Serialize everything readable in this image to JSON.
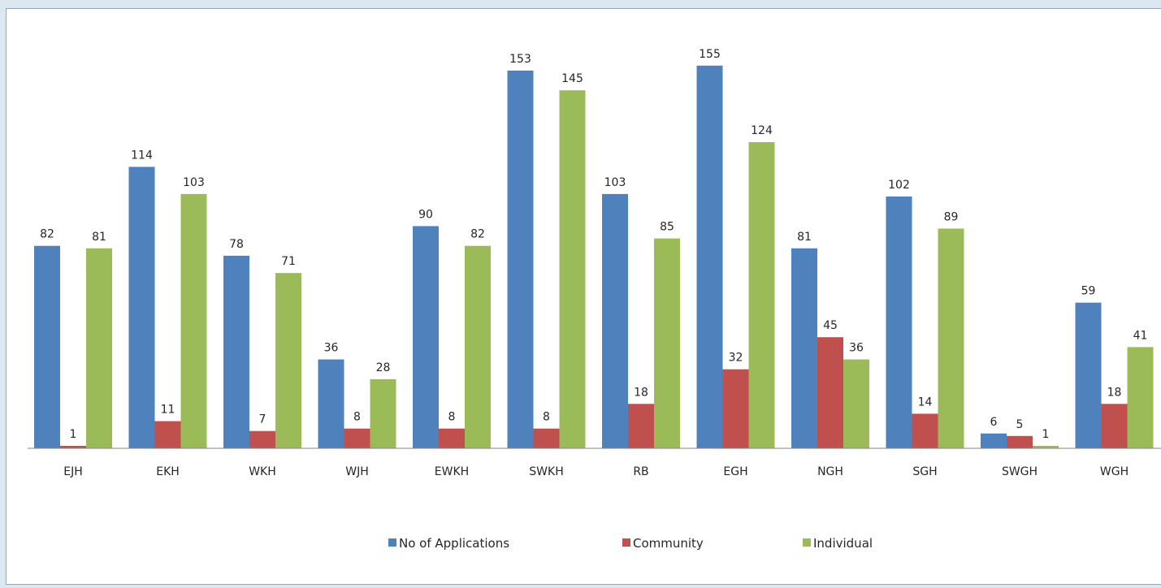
{
  "chart_data": {
    "type": "bar",
    "categories": [
      "EJH",
      "EKH",
      "WKH",
      "WJH",
      "EWKH",
      "SWKH",
      "RB",
      "EGH",
      "NGH",
      "SGH",
      "SWGH",
      "WGH"
    ],
    "series": [
      {
        "name": "No of Applications",
        "color": "#4f81bd",
        "values": [
          82,
          114,
          78,
          36,
          90,
          153,
          103,
          155,
          81,
          102,
          6,
          59
        ]
      },
      {
        "name": "Community",
        "color": "#c0504d",
        "values": [
          1,
          11,
          7,
          8,
          8,
          8,
          18,
          32,
          45,
          14,
          5,
          18
        ]
      },
      {
        "name": "Individual",
        "color": "#9bbb59",
        "values": [
          81,
          103,
          71,
          28,
          82,
          145,
          85,
          124,
          36,
          89,
          1,
          41
        ]
      }
    ],
    "ylim": [
      0,
      165
    ],
    "grid": false,
    "legend_position": "bottom"
  }
}
